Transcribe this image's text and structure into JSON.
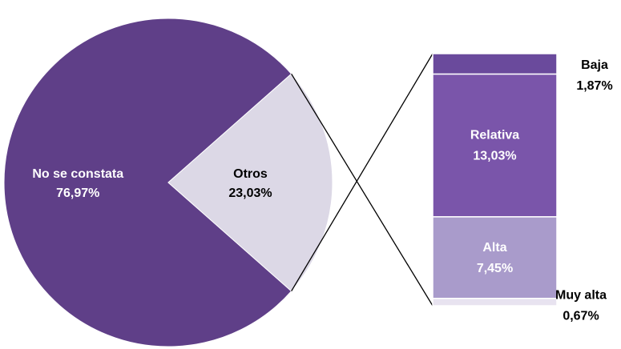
{
  "chart_data": {
    "type": "pie",
    "categories": [
      "No se constata",
      "Otros"
    ],
    "values": [
      76.97,
      23.03
    ],
    "value_labels": [
      "76,97%",
      "23,03%"
    ],
    "colors": [
      "#5f3f88",
      "#dcd8e6"
    ],
    "breakdown": {
      "type": "bar",
      "categories": [
        "Baja",
        "Relativa",
        "Alta",
        "Muy alta"
      ],
      "values": [
        1.87,
        13.03,
        7.45,
        0.67
      ],
      "value_labels": [
        "1,87%",
        "13,03%",
        "7,45%",
        "0,67%"
      ],
      "colors": [
        "#6a4a9c",
        "#7a55aa",
        "#a99bcb",
        "#e8e3f0"
      ]
    }
  }
}
